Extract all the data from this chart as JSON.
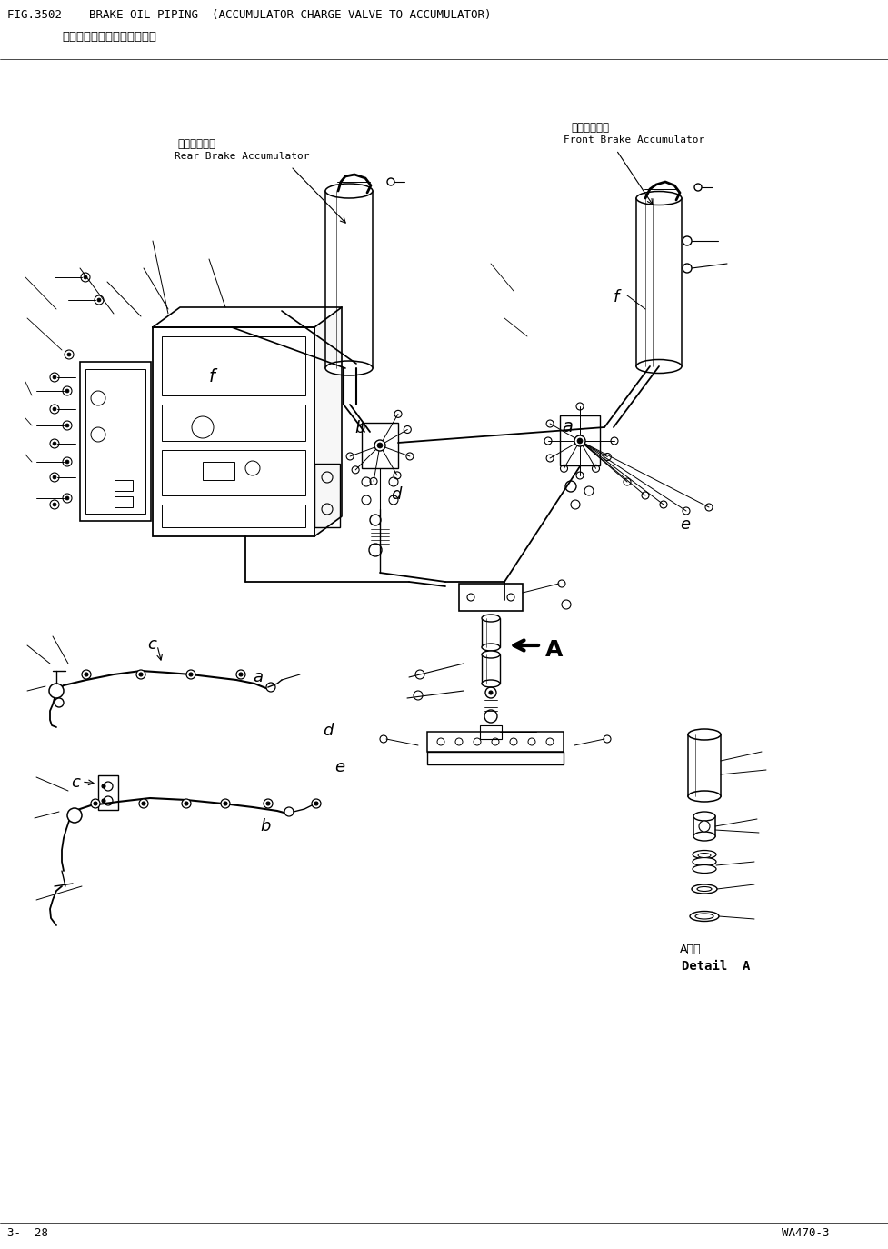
{
  "title_line1": "FIG.3502    BRAKE OIL PIPING  (ACCUMULATOR CHARGE VALVE TO ACCUMULATOR)",
  "title_line2": "制动管路（蓄能阀到蓄能器）",
  "footer_left": "3-  28",
  "footer_right": "WA470-3",
  "label_rear_cn": "后制动蓄能器",
  "label_rear_en": "Rear Brake Accumulator",
  "label_front_cn": "前制动蓄能器",
  "label_front_en": "Front Brake Accumulator",
  "label_detail_cn": "A详组",
  "label_detail_en": "Detail  A",
  "bg_color": "#ffffff",
  "line_color": "#000000"
}
